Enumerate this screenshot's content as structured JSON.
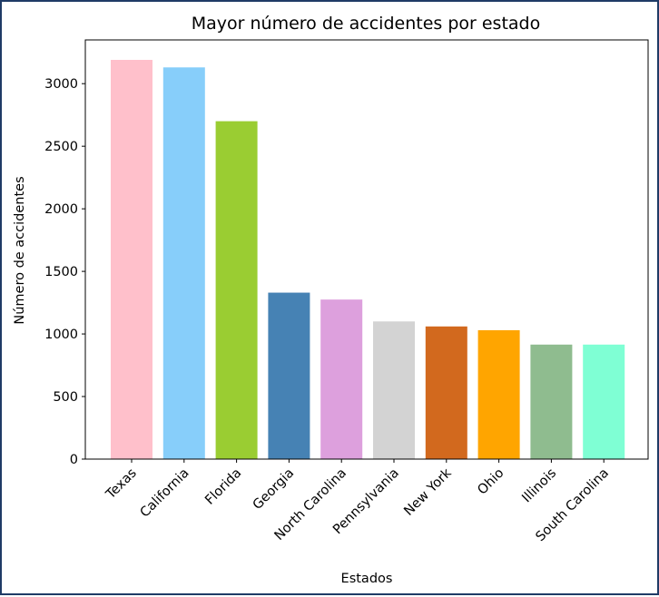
{
  "chart_data": {
    "type": "bar",
    "title": "Mayor número de accidentes por estado",
    "xlabel": "Estados",
    "ylabel": "Número de accidentes",
    "categories": [
      "Texas",
      "California",
      "Florida",
      "Georgia",
      "North Carolina",
      "Pennsylvania",
      "New York",
      "Ohio",
      "Illinois",
      "South Carolina"
    ],
    "values": [
      3190,
      3130,
      2700,
      1330,
      1275,
      1100,
      1060,
      1030,
      915,
      915
    ],
    "colors": [
      "#ffc0cb",
      "#87cefa",
      "#9acd32",
      "#4682b4",
      "#dda0dd",
      "#d3d3d3",
      "#d2691e",
      "#ffa500",
      "#8fbc8f",
      "#7fffd4"
    ],
    "yticks": [
      0,
      500,
      1000,
      1500,
      2000,
      2500,
      3000
    ],
    "ylim": [
      0,
      3349.5
    ],
    "grid": false,
    "legend": "none"
  }
}
